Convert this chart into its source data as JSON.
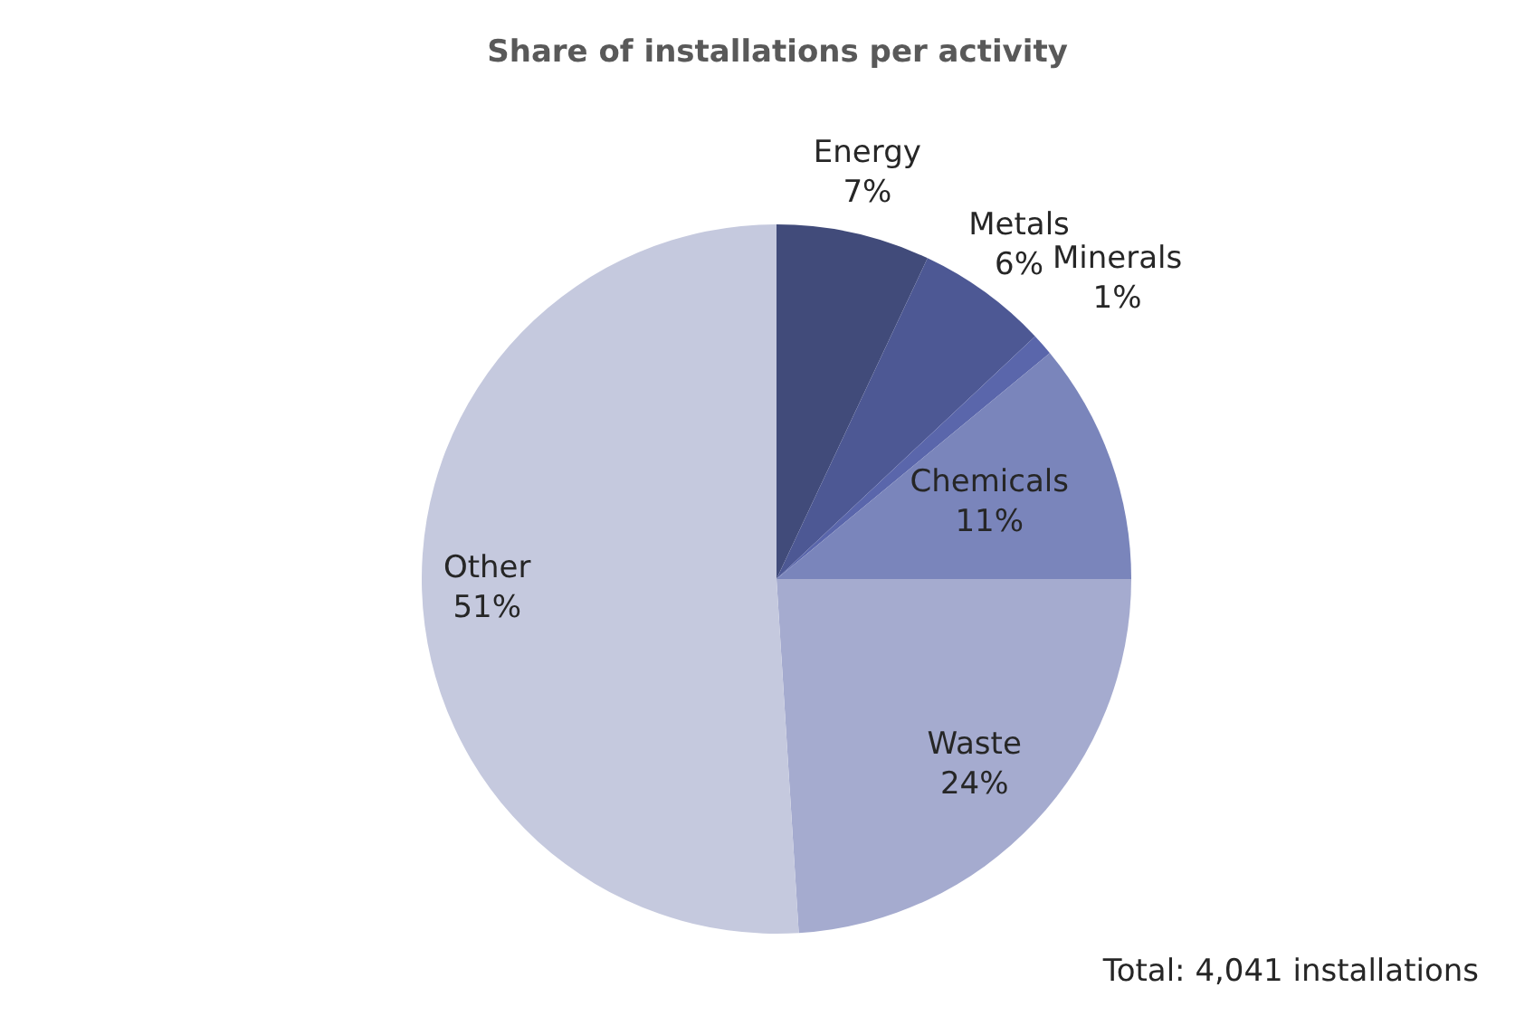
{
  "chart_data": {
    "type": "pie",
    "title": "Share of installations per activity",
    "categories": [
      "Energy",
      "Metals",
      "Minerals",
      "Chemicals",
      "Waste",
      "Other"
    ],
    "values": [
      7,
      6,
      1,
      11,
      24,
      51
    ],
    "value_labels": [
      "7%",
      "6%",
      "1%",
      "11%",
      "24%",
      "51%"
    ],
    "colors": [
      "#414b7a",
      "#4d5894",
      "#5a66ab",
      "#7a85bb",
      "#a5abcf",
      "#c5c9de"
    ],
    "annotations": [
      "Total: 4,041 installations"
    ]
  }
}
